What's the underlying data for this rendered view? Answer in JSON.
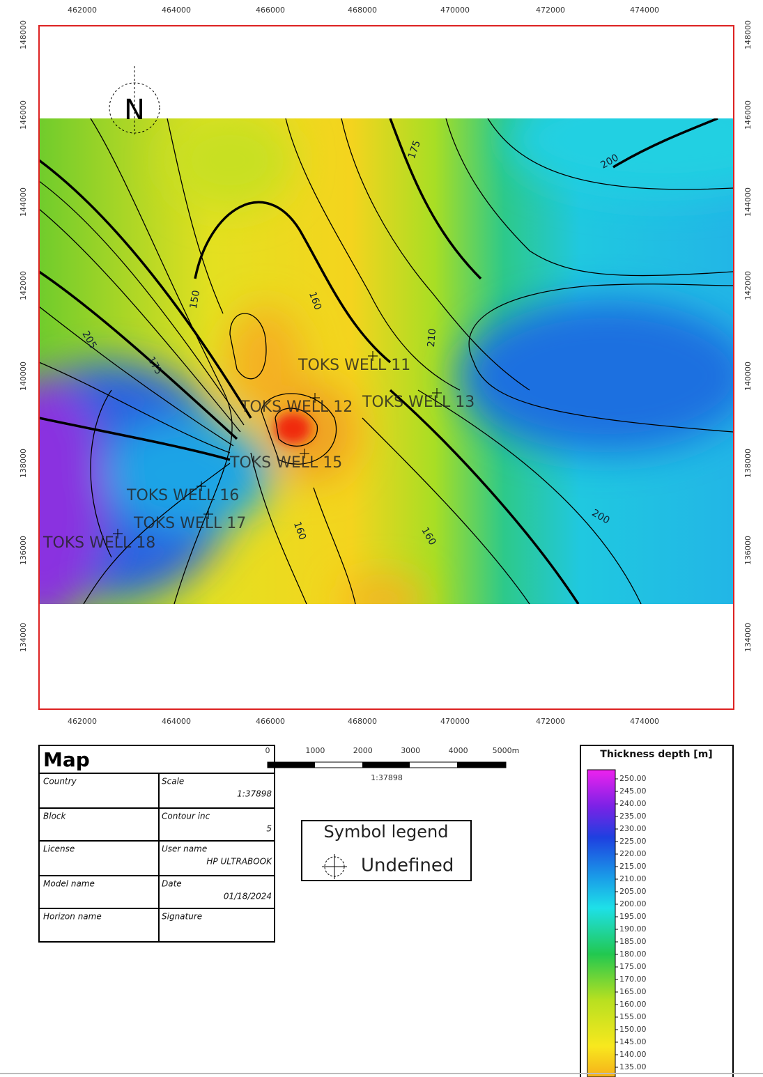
{
  "map": {
    "north": "N",
    "x_ticks_top": [
      "462000",
      "464000",
      "466000",
      "468000",
      "470000",
      "472000",
      "474000"
    ],
    "x_ticks_bottom": [
      "462000",
      "464000",
      "466000",
      "468000",
      "470000",
      "472000",
      "474000"
    ],
    "y_ticks_left": [
      "148000",
      "146000",
      "144000",
      "142000",
      "140000",
      "138000",
      "136000",
      "134000"
    ],
    "y_ticks_right": [
      "148000",
      "146000",
      "144000",
      "142000",
      "140000",
      "138000",
      "136000",
      "134000"
    ],
    "contour_labels": [
      "175",
      "200",
      "150",
      "160",
      "210",
      "205",
      "175",
      "200",
      "160",
      "160"
    ],
    "wells": [
      "TOKS WELL 11",
      "TOKS WELL 12",
      "TOKS WELL 13",
      "TOKS WELL 15",
      "TOKS WELL 16",
      "TOKS WELL 17",
      "TOKS WELL 18"
    ]
  },
  "title_block": {
    "title": "Map",
    "rows": [
      {
        "left": "Country",
        "right": "Scale",
        "value": "1:37898"
      },
      {
        "left": "Block",
        "right": "Contour inc",
        "value": "5"
      },
      {
        "left": "License",
        "right": "User name",
        "value": "HP ULTRABOOK"
      },
      {
        "left": "Model name",
        "right": "Date",
        "value": "01/18/2024"
      },
      {
        "left": "Horizon name",
        "right": "Signature"
      }
    ]
  },
  "scale_bar": {
    "ticks": [
      "0",
      "1000",
      "2000",
      "3000",
      "4000",
      "5000m"
    ],
    "ratio": "1:37898"
  },
  "symbol_legend": {
    "title": "Symbol legend",
    "items": [
      "Undefined"
    ]
  },
  "color_legend": {
    "title": "Thickness depth [m]",
    "labels": [
      "250.00",
      "245.00",
      "240.00",
      "235.00",
      "230.00",
      "225.00",
      "220.00",
      "215.00",
      "210.00",
      "205.00",
      "200.00",
      "195.00",
      "190.00",
      "185.00",
      "180.00",
      "175.00",
      "170.00",
      "165.00",
      "160.00",
      "155.00",
      "150.00",
      "145.00",
      "140.00",
      "135.00"
    ]
  }
}
